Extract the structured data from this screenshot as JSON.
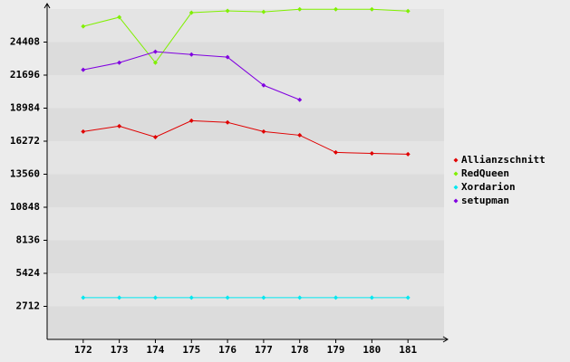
{
  "chart_data": {
    "type": "line",
    "x": [
      172,
      173,
      174,
      175,
      176,
      177,
      178,
      179,
      180,
      181
    ],
    "xlim": [
      171,
      182
    ],
    "xticks": [
      172,
      173,
      174,
      175,
      176,
      177,
      178,
      179,
      180,
      181
    ],
    "ylim": [
      0,
      27120
    ],
    "yticks": [
      2712,
      5424,
      8136,
      10848,
      13560,
      16272,
      18984,
      21696,
      24408
    ],
    "grid": true,
    "legend": "right",
    "series": [
      {
        "name": "Allianzschnitt",
        "color": "#e00000",
        "values": [
          17060,
          17510,
          16610,
          17950,
          17810,
          17060,
          16760,
          15350,
          15270,
          15200
        ]
      },
      {
        "name": "RedQueen",
        "color": "#80f000",
        "values": [
          25700,
          26450,
          22720,
          26820,
          26970,
          26890,
          27100,
          27100,
          27100,
          26950
        ]
      },
      {
        "name": "Xordarion",
        "color": "#00e8f0",
        "values": [
          3430,
          3430,
          3430,
          3430,
          3430,
          3430,
          3430,
          3430,
          3430,
          3430
        ]
      },
      {
        "name": "setupman",
        "color": "#8000e0",
        "values": [
          22130,
          22720,
          23620,
          23390,
          23170,
          20860,
          19670,
          null,
          null,
          null
        ]
      }
    ]
  }
}
